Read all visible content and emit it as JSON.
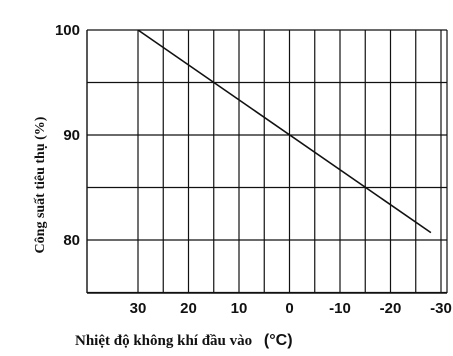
{
  "chart_data": {
    "type": "line",
    "title": "",
    "xlabel": "Nhiệt độ không khí đầu vào",
    "xlabel_unit": "(°C)",
    "ylabel": "Công suất tiêu thụ (%)",
    "x_ticks": [
      "30",
      "20",
      "10",
      "0",
      "-10",
      "-20",
      "-30"
    ],
    "y_ticks": [
      "100",
      "90",
      "80"
    ],
    "xlim": [
      30,
      -30
    ],
    "x_axis_reversed": true,
    "ylim": [
      75,
      100
    ],
    "grid": true,
    "series": [
      {
        "x": [
          30,
          -28
        ],
        "y": [
          100,
          80.7
        ]
      }
    ]
  }
}
